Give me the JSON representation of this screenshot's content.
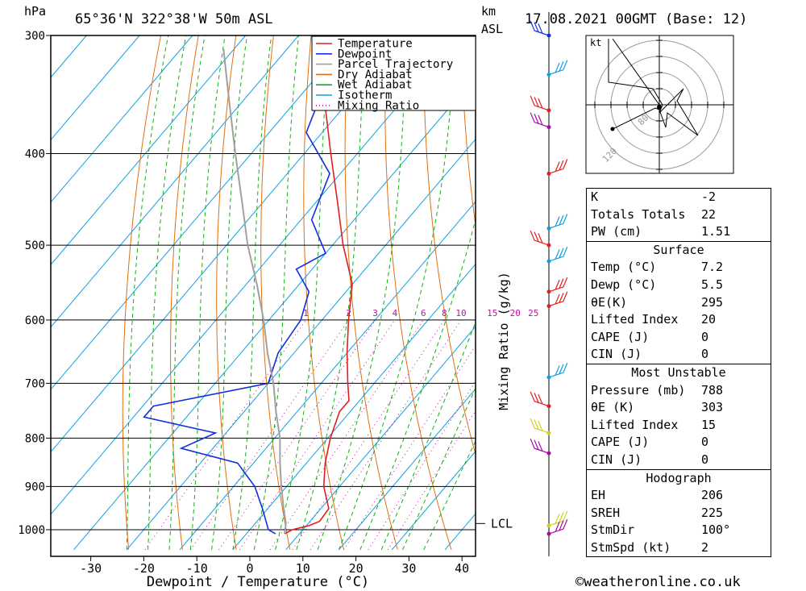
{
  "header": {
    "location": "65°36'N  322°38'W  50m  ASL",
    "datetime": "17.08.2021  00GMT  (Base: 12)",
    "pressure_unit": "hPa",
    "height_unit_1": "km",
    "height_unit_2": "ASL",
    "hodo_unit": "kt",
    "hodo_ring_1": "80",
    "hodo_ring_2": "120"
  },
  "chart_data": {
    "type": "line",
    "chart_kind": "skew-T log-P",
    "xlabel": "Dewpoint / Temperature (°C)",
    "ylabel": "hPa",
    "y_scale": "log",
    "ylim": [
      300,
      1050
    ],
    "xlim": [
      -38,
      42
    ],
    "x_ticks": [
      -30,
      -20,
      -10,
      0,
      10,
      20,
      30,
      40
    ],
    "y_ticks": [
      300,
      400,
      500,
      600,
      700,
      800,
      900,
      1000
    ],
    "mixing_ratio_label": "Mixing Ratio (g/kg)",
    "mixing_ratio_values": [
      "1",
      "2",
      "3",
      "4",
      "6",
      "8",
      "10",
      "15",
      "20",
      "25"
    ],
    "lcl_label": "LCL",
    "lcl_pressure": 985,
    "legend": [
      "Temperature",
      "Dewpoint",
      "Parcel Trajectory",
      "Dry Adiabat",
      "Wet Adiabat",
      "Isotherm",
      "Mixing Ratio"
    ],
    "legend_position": "top-right",
    "colors": {
      "temperature": "#e02020",
      "dewpoint": "#1030e0",
      "parcel": "#a0a0a0",
      "dry_adiabat": "#e07010",
      "wet_adiabat": "#10b010",
      "isotherm": "#10a0e0",
      "mixing_ratio": "#c010a0"
    },
    "series": [
      {
        "name": "Temperature",
        "points": [
          [
            1010,
            7.2
          ],
          [
            1000,
            8
          ],
          [
            990,
            10.5
          ],
          [
            980,
            11.8
          ],
          [
            950,
            11.5
          ],
          [
            900,
            7
          ],
          [
            850,
            3.5
          ],
          [
            800,
            0.5
          ],
          [
            750,
            -2
          ],
          [
            730,
            -2
          ],
          [
            700,
            -5
          ],
          [
            650,
            -10
          ],
          [
            600,
            -15
          ],
          [
            550,
            -20
          ],
          [
            500,
            -28
          ],
          [
            450,
            -36
          ],
          [
            400,
            -45
          ],
          [
            350,
            -55
          ],
          [
            300,
            -64
          ]
        ]
      },
      {
        "name": "Dewpoint",
        "points": [
          [
            1010,
            5.5
          ],
          [
            1000,
            3.5
          ],
          [
            950,
            -1
          ],
          [
            900,
            -6
          ],
          [
            850,
            -13
          ],
          [
            820,
            -26
          ],
          [
            790,
            -22
          ],
          [
            760,
            -38
          ],
          [
            740,
            -38
          ],
          [
            700,
            -20
          ],
          [
            650,
            -23
          ],
          [
            600,
            -24
          ],
          [
            560,
            -27
          ],
          [
            530,
            -33
          ],
          [
            510,
            -30
          ],
          [
            470,
            -38
          ],
          [
            420,
            -42
          ],
          [
            380,
            -53
          ],
          [
            330,
            -58
          ],
          [
            300,
            -63
          ]
        ]
      },
      {
        "name": "Parcel Trajectory",
        "points": [
          [
            1010,
            7.2
          ],
          [
            985,
            5.8
          ],
          [
            950,
            3
          ],
          [
            900,
            -1
          ],
          [
            850,
            -5
          ],
          [
            800,
            -9
          ],
          [
            750,
            -14
          ],
          [
            700,
            -19
          ],
          [
            650,
            -25
          ],
          [
            600,
            -31
          ],
          [
            550,
            -38
          ],
          [
            500,
            -46
          ],
          [
            450,
            -54
          ],
          [
            400,
            -63
          ],
          [
            350,
            -73
          ],
          [
            310,
            -82
          ]
        ]
      }
    ]
  },
  "indices": {
    "k_label": "K",
    "k_value": "-2",
    "tt_label": "Totals Totals",
    "tt_value": "22",
    "pw_label": "PW (cm)",
    "pw_value": "1.51",
    "surface_title": "Surface",
    "s_temp_label": "Temp (°C)",
    "s_temp_value": "7.2",
    "s_dewp_label": "Dewp (°C)",
    "s_dewp_value": "5.5",
    "s_theta_label": "θE(K)",
    "s_theta_value": "295",
    "s_li_label": "Lifted Index",
    "s_li_value": "20",
    "s_cape_label": "CAPE (J)",
    "s_cape_value": "0",
    "s_cin_label": "CIN (J)",
    "s_cin_value": "0",
    "mu_title": "Most Unstable",
    "mu_p_label": "Pressure (mb)",
    "mu_p_value": "788",
    "mu_theta_label": "θE (K)",
    "mu_theta_value": "303",
    "mu_li_label": "Lifted Index",
    "mu_li_value": "15",
    "mu_cape_label": "CAPE (J)",
    "mu_cape_value": "0",
    "mu_cin_label": "CIN (J)",
    "mu_cin_value": "0",
    "hodo_title": "Hodograph",
    "eh_label": "EH",
    "eh_value": "206",
    "srh_label": "SREH",
    "srh_value": "225",
    "stmdir_label": "StmDir",
    "stmdir_value": "100°",
    "stmspd_label": "StmSpd (kt)",
    "stmspd_value": "2"
  },
  "footer": {
    "copyright": "©weatheronline.co.uk"
  }
}
